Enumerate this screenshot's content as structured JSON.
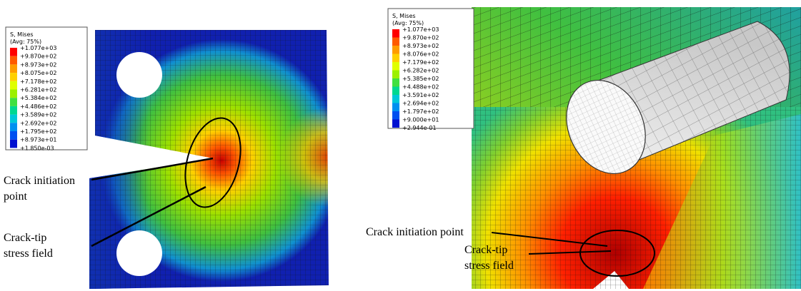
{
  "panels": [
    {
      "legend": {
        "title": "S, Mises",
        "subtitle": "(Avg: 75%)",
        "labels": [
          "+1.077e+03",
          "+9.870e+02",
          "+8.973e+02",
          "+8.075e+02",
          "+7.178e+02",
          "+6.281e+02",
          "+5.384e+02",
          "+4.486e+02",
          "+3.589e+02",
          "+2.692e+02",
          "+1.795e+02",
          "+8.973e+01",
          "+1.850e-03"
        ]
      },
      "annotations": [
        {
          "lines": [
            "Crack initiation",
            "point"
          ]
        },
        {
          "lines": [
            "Crack-tip",
            "stress field"
          ]
        }
      ]
    },
    {
      "legend": {
        "title": "S, Mises",
        "subtitle": "(Avg: 75%)",
        "labels": [
          "+1.077e+03",
          "+9.870e+02",
          "+8.973e+02",
          "+8.076e+02",
          "+7.179e+02",
          "+6.282e+02",
          "+5.385e+02",
          "+4.488e+02",
          "+3.591e+02",
          "+2.694e+02",
          "+1.797e+02",
          "+9.000e+01",
          "+2.944e-01"
        ]
      },
      "annotations": [
        {
          "lines": [
            "Crack initiation point"
          ]
        },
        {
          "lines": [
            "Crack-tip",
            "stress field"
          ]
        }
      ]
    }
  ]
}
